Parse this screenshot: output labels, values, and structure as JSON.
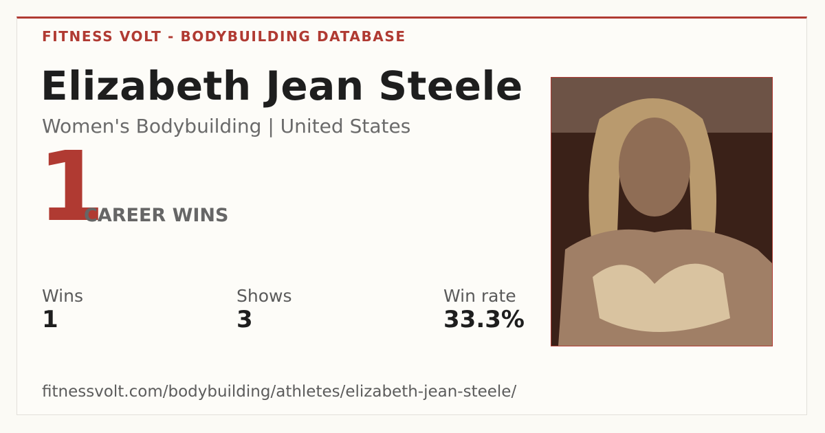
{
  "header": {
    "brand": "FITNESS VOLT - BODYBUILDING DATABASE"
  },
  "athlete": {
    "name": "Elizabeth Jean Steele",
    "subtitle": "Women's Bodybuilding | United States"
  },
  "hero": {
    "number": "1",
    "label": "CAREER WINS"
  },
  "stats": [
    {
      "label": "Wins",
      "value": "1"
    },
    {
      "label": "Shows",
      "value": "3"
    },
    {
      "label": "Win rate",
      "value": "33.3%"
    }
  ],
  "footer": {
    "url": "fitnessvolt.com/bodybuilding/athletes/elizabeth-jean-steele/"
  }
}
